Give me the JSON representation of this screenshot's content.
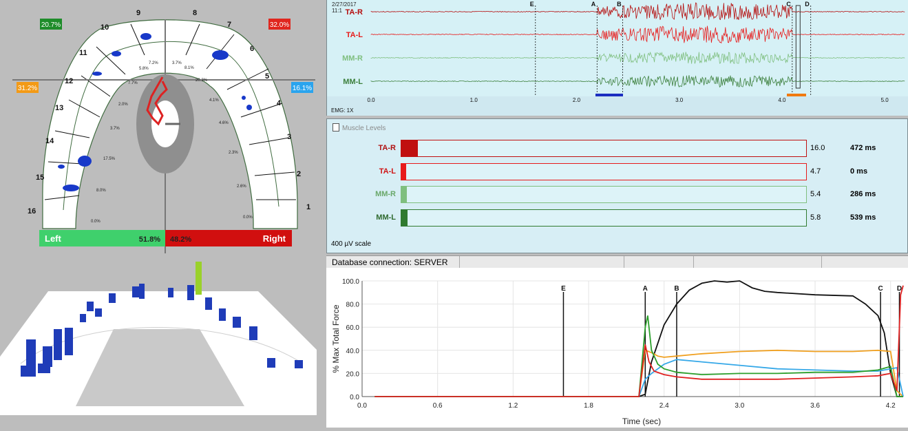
{
  "arch": {
    "pct_top_left": "20.7%",
    "pct_top_right": "32.0%",
    "pct_mid_left": "31.2%",
    "pct_mid_right": "16.1%",
    "left_label": "Left",
    "left_value": "51.8%",
    "right_value": "48.2%",
    "right_label": "Right",
    "tooth_numbers": [
      "1",
      "2",
      "3",
      "4",
      "5",
      "6",
      "7",
      "8",
      "9",
      "10",
      "11",
      "12",
      "13",
      "14",
      "15",
      "16"
    ],
    "segment_pcts": [
      "0.0%",
      "8.0%",
      "17.5%",
      "3.7%",
      "2.0%",
      "7.7%",
      "5.8%",
      "7.2%",
      "3.7%",
      "8.1%",
      "20.3%",
      "4.1%",
      "4.6%",
      "2.3%",
      "2.6%",
      "0.0%"
    ],
    "colors": {
      "left": "#3fd06c",
      "right": "#d10f0f",
      "top_left_badge": "#1e8c2a",
      "top_right_badge": "#e0261e",
      "mid_left_badge": "#f39a16",
      "mid_right_badge": "#2aa4ee"
    }
  },
  "emg": {
    "date": "2/27/2017",
    "time": "11:1",
    "gain": "EMG: 1X",
    "channels": [
      {
        "name": "TA-R",
        "color": "#b50d0d"
      },
      {
        "name": "TA-L",
        "color": "#e81a1a"
      },
      {
        "name": "MM-R",
        "color": "#7fbf7f"
      },
      {
        "name": "MM-L",
        "color": "#3b7f3b"
      }
    ],
    "markers": [
      "E",
      "A",
      "B",
      "C",
      "D"
    ],
    "ticks": [
      "0.0",
      "1.0",
      "2.0",
      "3.0",
      "4.0",
      "5.0"
    ]
  },
  "muscle_levels": {
    "title": "Muscle Levels",
    "rows": [
      {
        "name": "TA-R",
        "value": "16.0",
        "ms": "472 ms",
        "level": 0.04,
        "color": "#c01010",
        "label_color": "#b01010"
      },
      {
        "name": "TA-L",
        "value": "4.7",
        "ms": "0 ms",
        "level": 0.012,
        "color": "#e81a1a",
        "label_color": "#d01515"
      },
      {
        "name": "MM-R",
        "value": "5.4",
        "ms": "286 ms",
        "level": 0.014,
        "color": "#7fbf7f",
        "label_color": "#6aa86a"
      },
      {
        "name": "MM-L",
        "value": "5.8",
        "ms": "539 ms",
        "level": 0.015,
        "color": "#2f7a2f",
        "label_color": "#2f6a2f"
      }
    ],
    "scale": "400 µV scale"
  },
  "status": {
    "db": "Database connection: SERVER"
  },
  "force_chart": {
    "ylabel": "% Max Total Force",
    "xlabel": "Time (sec)",
    "markers": [
      "E",
      "A",
      "B",
      "C",
      "D"
    ]
  },
  "chart_data": {
    "type": "line",
    "title": "",
    "xlabel": "Time (sec)",
    "ylabel": "% Max Total Force",
    "xlim": [
      0.0,
      4.3
    ],
    "ylim": [
      0.0,
      100.0
    ],
    "xticks": [
      "0.0",
      "0.6",
      "1.2",
      "1.8",
      "2.4",
      "3.0",
      "3.6",
      "4.2"
    ],
    "yticks": [
      "0.0",
      "20.0",
      "40.0",
      "60.0",
      "80.0",
      "100.0"
    ],
    "markers": [
      {
        "label": "E",
        "x": 1.6
      },
      {
        "label": "A",
        "x": 2.25
      },
      {
        "label": "B",
        "x": 2.5
      },
      {
        "label": "C",
        "x": 4.12
      },
      {
        "label": "D",
        "x": 4.27
      }
    ],
    "series": [
      {
        "name": "total",
        "color": "#111111",
        "x": [
          0.1,
          2.2,
          2.25,
          2.3,
          2.4,
          2.5,
          2.6,
          2.7,
          2.8,
          2.9,
          3.0,
          3.1,
          3.2,
          3.3,
          3.6,
          3.9,
          4.0,
          4.1,
          4.15,
          4.2,
          4.25,
          4.3
        ],
        "y": [
          0,
          0,
          2,
          30,
          62,
          80,
          92,
          98,
          100,
          99,
          100,
          94,
          91,
          90,
          88,
          87,
          80,
          70,
          55,
          20,
          0,
          0
        ]
      },
      {
        "name": "orange",
        "color": "#f0a020",
        "x": [
          0.1,
          2.2,
          2.25,
          2.3,
          2.35,
          2.4,
          2.5,
          2.7,
          3.0,
          3.3,
          3.6,
          3.9,
          4.1,
          4.2,
          4.25,
          4.3
        ],
        "y": [
          0,
          0,
          40,
          38,
          35,
          34,
          35,
          37,
          39,
          40,
          39,
          39,
          40,
          39,
          5,
          0
        ]
      },
      {
        "name": "blue",
        "color": "#35a8e8",
        "x": [
          0.1,
          2.2,
          2.25,
          2.3,
          2.4,
          2.5,
          2.7,
          3.0,
          3.3,
          3.6,
          3.9,
          4.1,
          4.2,
          4.25,
          4.3
        ],
        "y": [
          0,
          0,
          15,
          20,
          28,
          32,
          30,
          27,
          24,
          23,
          22,
          22,
          24,
          25,
          0
        ]
      },
      {
        "name": "green",
        "color": "#2ca02c",
        "x": [
          0.1,
          2.2,
          2.25,
          2.27,
          2.3,
          2.35,
          2.4,
          2.5,
          2.7,
          3.0,
          3.3,
          3.6,
          3.9,
          4.1,
          4.2,
          4.25,
          4.3
        ],
        "y": [
          0,
          0,
          60,
          70,
          40,
          28,
          24,
          21,
          19,
          20,
          20,
          21,
          21,
          23,
          26,
          0,
          0
        ]
      },
      {
        "name": "red",
        "color": "#e02020",
        "x": [
          0.1,
          2.2,
          2.25,
          2.28,
          2.32,
          2.4,
          2.5,
          2.7,
          3.0,
          3.3,
          3.6,
          3.9,
          4.1,
          4.2,
          4.25,
          4.28,
          4.3
        ],
        "y": [
          0,
          0,
          45,
          30,
          22,
          19,
          17,
          15,
          15,
          15,
          16,
          17,
          18,
          20,
          5,
          88,
          96
        ]
      }
    ]
  }
}
